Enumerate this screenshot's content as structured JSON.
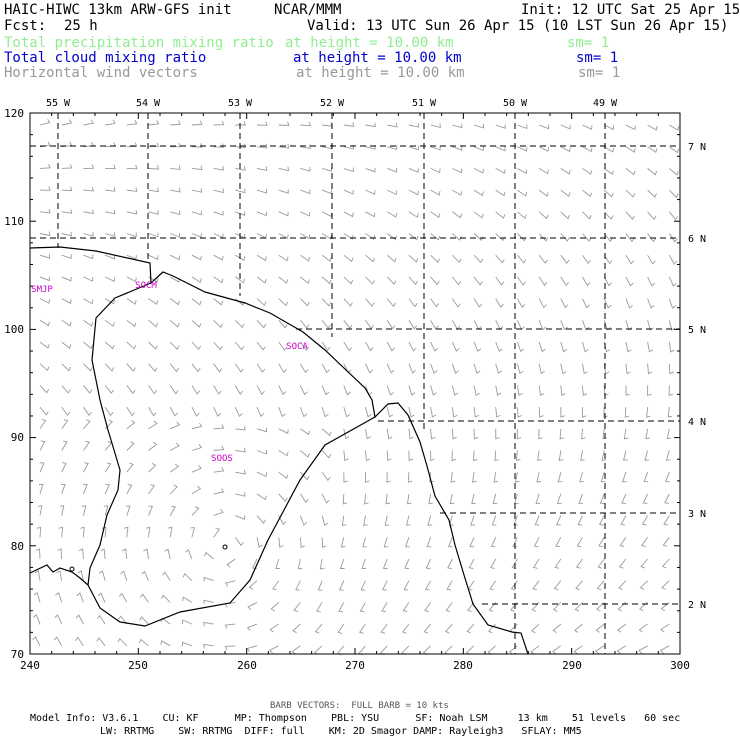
{
  "header": {
    "model": "HAIC-HIWC 13km ARW-GFS init",
    "org": "NCAR/MMM",
    "init": "Init: 12 UTC Sat 25 Apr 15",
    "fcst_label": "Fcst:",
    "fcst_value": "25 h",
    "valid": "Valid: 13 UTC Sun 26 Apr 15 (10 LST Sun 26 Apr 15)",
    "fields": [
      {
        "name": "Total precipitation mixing ratio",
        "height": "at height = 10.00 km",
        "sm": "sm= 1",
        "color": "#90ee90"
      },
      {
        "name": "Total cloud mixing ratio",
        "height": "at height = 10.00 km",
        "sm": "sm= 1",
        "color": "#0000cd"
      },
      {
        "name": "Horizontal wind vectors",
        "height": "at height = 10.00 km",
        "sm": "sm= 1",
        "color": "#999999"
      }
    ]
  },
  "map": {
    "x_ticks": [
      "240",
      "250",
      "260",
      "270",
      "280",
      "290",
      "300"
    ],
    "y_ticks": [
      "70",
      "80",
      "90",
      "100",
      "110",
      "120"
    ],
    "lon_labels": [
      "55 W",
      "54 W",
      "53 W",
      "52 W",
      "51 W",
      "50 W",
      "49 W"
    ],
    "lat_labels": [
      "7 N",
      "6 N",
      "5 N",
      "4 N",
      "3 N",
      "2 N"
    ],
    "stations": [
      "SMJP",
      "SOCM",
      "SOCA",
      "SOOS"
    ],
    "station_color": "#cc00cc"
  },
  "footer": {
    "barb_note": "BARB VECTORS:  FULL BARB = 10 kts",
    "line1": "Model Info: V3.6.1    CU: KF      MP: Thompson    PBL: YSU      SF: Noah LSM     13 km    51 levels   60 sec",
    "line2": "LW: RRTMG    SW: RRTMG  DIFF: full    KM: 2D Smagor DAMP: Rayleigh3   SFLAY: MM5"
  }
}
